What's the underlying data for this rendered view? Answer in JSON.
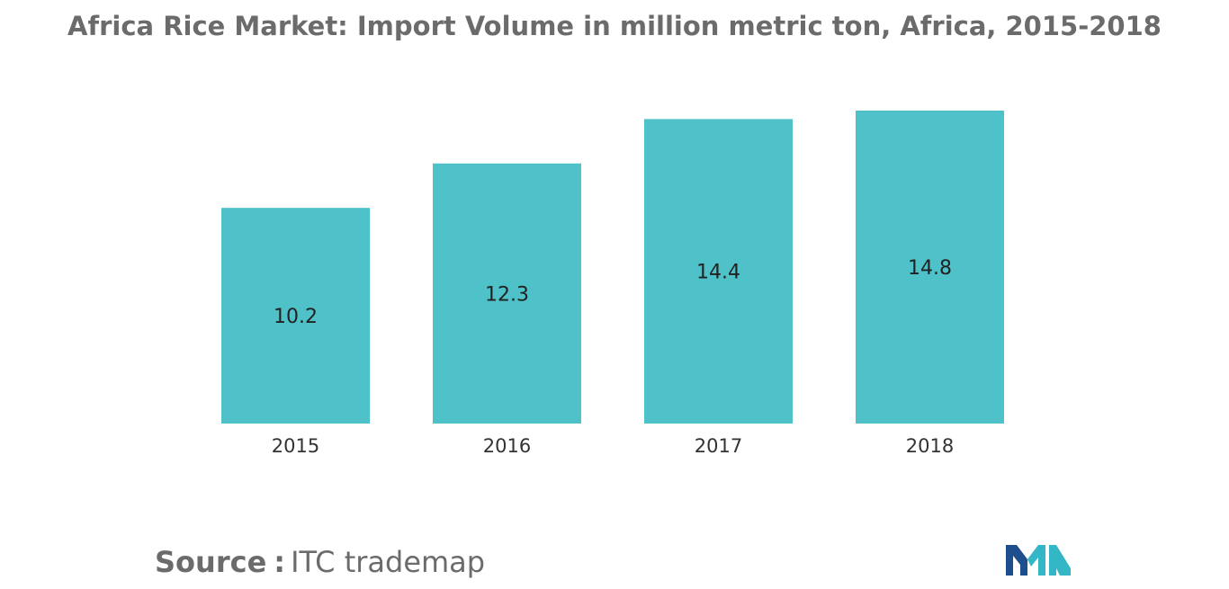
{
  "chart_data": {
    "type": "bar",
    "title": "Africa Rice Market: Import Volume in million metric ton, Africa, 2015-2018",
    "categories": [
      "2015",
      "2016",
      "2017",
      "2018"
    ],
    "values": [
      10.2,
      12.3,
      14.4,
      14.8
    ],
    "value_labels": [
      "10.2",
      "12.3",
      "14.4",
      "14.8"
    ],
    "xlabel": "",
    "ylabel": "",
    "ylim": [
      0,
      14.8
    ],
    "grid": false,
    "legend": "none",
    "bar_color": "#4fc2c9"
  },
  "source": {
    "label": "Source",
    "separator": ":",
    "text": "ITC trademap"
  },
  "logo": {
    "icon": "mordor-intelligence-logo-icon",
    "color_dark": "#1f4e8c",
    "color_light": "#33b6c6"
  }
}
